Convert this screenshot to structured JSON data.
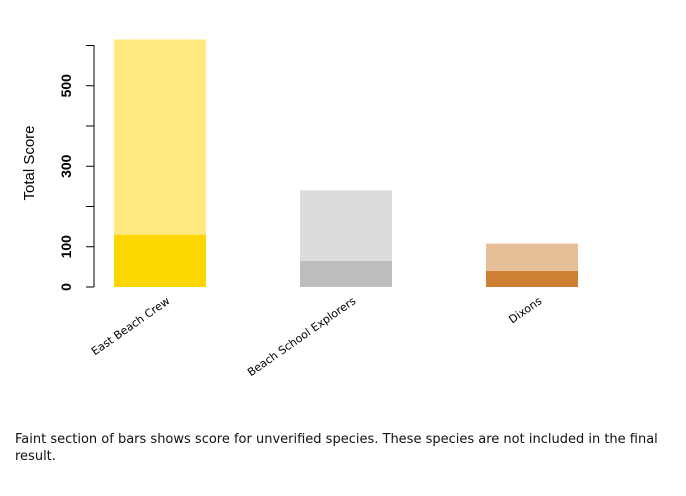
{
  "chart_data": {
    "type": "bar",
    "stacked": true,
    "ylabel": "Total Score",
    "yticks": [
      0,
      100,
      300,
      500
    ],
    "ylim": [
      0,
      600
    ],
    "categories": [
      "East Beach Crew",
      "Beach School Explorers",
      "Dixons"
    ],
    "series": [
      {
        "values": [
          130,
          65,
          40
        ],
        "colors": [
          "#ffd700",
          "#bdbdbd",
          "#cd7f32"
        ]
      },
      {
        "values": [
          485,
          175,
          68
        ],
        "colors": [
          "#ffe97f",
          "#dcdcdc",
          "#e6bf98"
        ]
      }
    ],
    "grid": false
  },
  "note": "Faint section of bars shows score for unverified species. These species are not included in the final result."
}
